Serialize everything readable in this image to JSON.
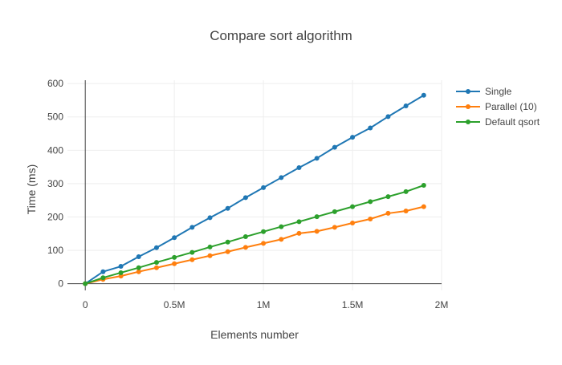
{
  "chart_data": {
    "type": "line",
    "title": "Compare sort algorithm",
    "xlabel": "Elements number",
    "ylabel": "Time (ms)",
    "xlim": [
      -100000,
      2000000
    ],
    "ylim": [
      -20,
      610
    ],
    "x_ticks": [
      0,
      500000,
      1000000,
      1500000,
      2000000
    ],
    "x_tick_labels": [
      "0",
      "0.5M",
      "1M",
      "1.5M",
      "2M"
    ],
    "y_ticks": [
      0,
      100,
      200,
      300,
      400,
      500,
      600
    ],
    "y_tick_labels": [
      "0",
      "100",
      "200",
      "300",
      "400",
      "500",
      "600"
    ],
    "grid": true,
    "legend_position": "top-right",
    "x": [
      0,
      100000,
      200000,
      300000,
      400000,
      500000,
      600000,
      700000,
      800000,
      900000,
      1000000,
      1100000,
      1200000,
      1300000,
      1400000,
      1500000,
      1600000,
      1700000,
      1800000,
      1900000
    ],
    "series": [
      {
        "name": "Single",
        "color": "#1f77b4",
        "values": [
          0,
          36,
          52,
          81,
          108,
          138,
          169,
          198,
          226,
          258,
          288,
          318,
          348,
          376,
          409,
          439,
          467,
          501,
          533,
          565
        ]
      },
      {
        "name": "Parallel (10)",
        "color": "#ff7f0e",
        "values": [
          0,
          13,
          23,
          36,
          48,
          60,
          72,
          84,
          96,
          109,
          121,
          133,
          151,
          157,
          169,
          182,
          194,
          211,
          218,
          231
        ]
      },
      {
        "name": "Default qsort",
        "color": "#2ca02c",
        "values": [
          0,
          18,
          33,
          48,
          64,
          79,
          94,
          110,
          125,
          141,
          156,
          171,
          186,
          201,
          216,
          231,
          246,
          261,
          276,
          295
        ]
      }
    ]
  }
}
